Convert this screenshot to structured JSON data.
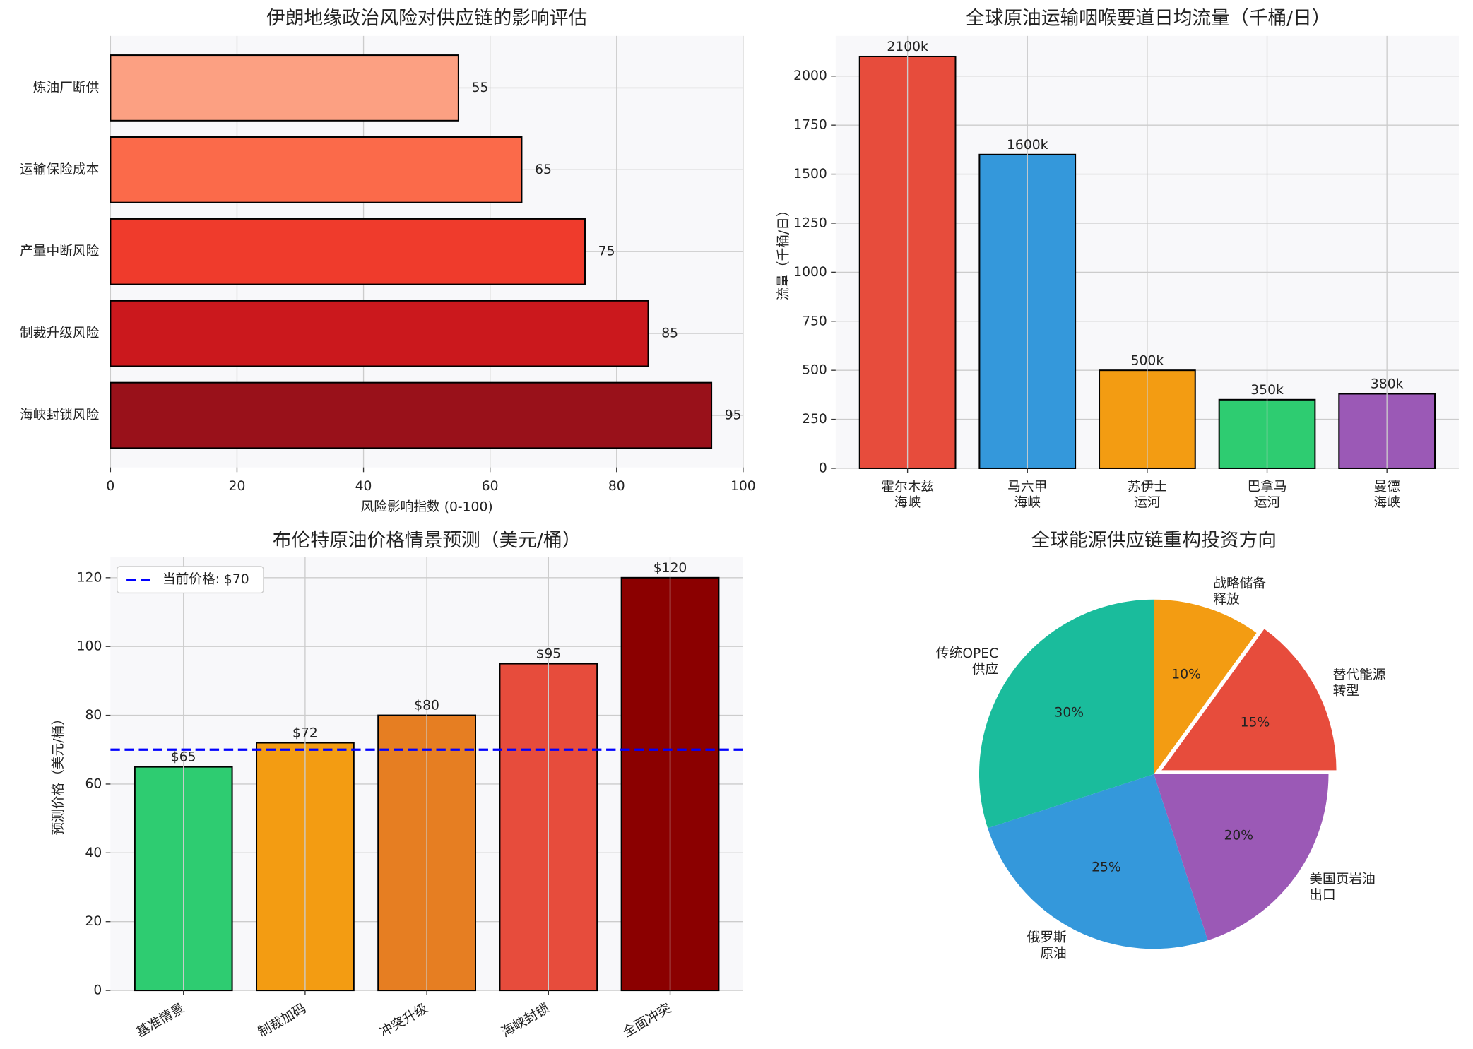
{
  "chart_data": [
    {
      "type": "hbar",
      "title": "伊朗地缘政治风险对供应链的影响评估",
      "xlabel": "风险影响指数 (0-100)",
      "categories": [
        "海峡封锁风险",
        "制裁升级风险",
        "产量中断风险",
        "运输保险成本",
        "炼油厂断供"
      ],
      "values": [
        95,
        85,
        75,
        65,
        55
      ],
      "colors": [
        "#99111a",
        "#cb181d",
        "#ef3b2c",
        "#fb6a4a",
        "#fca082"
      ],
      "xlim": [
        0,
        100
      ],
      "xticks": [
        0,
        20,
        40,
        60,
        80,
        100
      ],
      "grid": true
    },
    {
      "type": "bar",
      "title": "全球原油运输咽喉要道日均流量（千桶/日）",
      "ylabel": "流量（千桶/日）",
      "categories": [
        "霍尔木兹\n海峡",
        "马六甲\n海峡",
        "苏伊士\n运河",
        "巴拿马\n运河",
        "曼德\n海峡"
      ],
      "values": [
        2100,
        1600,
        500,
        350,
        380
      ],
      "value_labels": [
        "2100k",
        "1600k",
        "500k",
        "350k",
        "380k"
      ],
      "colors": [
        "#e74c3c",
        "#3498db",
        "#f39c12",
        "#2ecc71",
        "#9b59b6"
      ],
      "ylim": [
        0,
        2205
      ],
      "yticks": [
        0,
        250,
        500,
        750,
        1000,
        1250,
        1500,
        1750,
        2000
      ],
      "grid": true
    },
    {
      "type": "bar",
      "title": "布伦特原油价格情景预测（美元/桶）",
      "ylabel": "预测价格（美元/桶）",
      "categories": [
        "基准情景",
        "制裁加码",
        "冲突升级",
        "海峡封锁",
        "全面冲突"
      ],
      "values": [
        65,
        72,
        80,
        95,
        120
      ],
      "value_labels": [
        "$65",
        "$72",
        "$80",
        "$95",
        "$120"
      ],
      "colors": [
        "#2ecc71",
        "#f39c12",
        "#e67e22",
        "#e74c3c",
        "#8b0000"
      ],
      "ylim": [
        0,
        126
      ],
      "yticks": [
        0,
        20,
        40,
        60,
        80,
        100,
        120
      ],
      "grid": true,
      "reference_line": {
        "value": 70,
        "label": "当前价格: $70",
        "color": "#0000ff",
        "style": "dashed"
      },
      "legend": "upper left",
      "rotate_labels": true
    },
    {
      "type": "pie",
      "title": "全球能源供应链重构投资方向",
      "categories": [
        "传统OPEC\n供应",
        "俄罗斯\n原油",
        "美国页岩油\n出口",
        "替代能源\n转型",
        "战略储备\n释放"
      ],
      "values": [
        30,
        25,
        20,
        15,
        10
      ],
      "value_labels": [
        "30%",
        "25%",
        "20%",
        "15%",
        "10%"
      ],
      "colors": [
        "#1abc9c",
        "#3498db",
        "#9b59b6",
        "#e74c3c",
        "#f39c12"
      ],
      "explode": [
        0,
        0,
        0,
        0.05,
        0
      ],
      "start_angle": 90
    }
  ]
}
